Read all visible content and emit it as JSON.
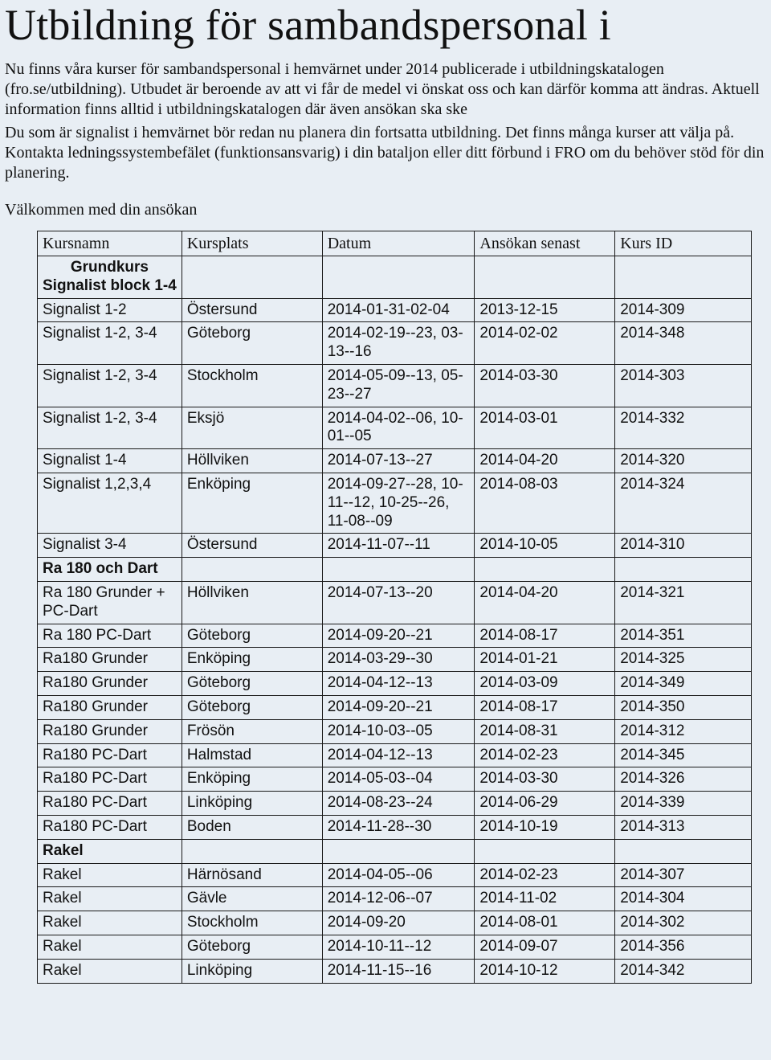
{
  "title": "Utbildning för sambandspersonal i",
  "intro_p1": "Nu finns våra kurser för sambandspersonal i hemvärnet under 2014 publicerade i utbildningskatalogen (fro.se/utbildning). Utbudet är beroende av att vi får de medel vi önskat oss och kan därför komma att ändras. Aktuell information finns alltid i utbildningskatalogen där även ansökan ska ske",
  "intro_p2": "Du som är signalist i hemvärnet bör redan nu planera din fortsatta utbildning. Det finns många kurser att välja på. Kontakta ledningssystembefälet (funktionsansvarig) i din bataljon eller ditt förbund i FRO om du behöver stöd för din planering.",
  "welcome": "Välkommen med din ansökan",
  "columns": [
    "Kursnamn",
    "Kursplats",
    "Datum",
    "Ansökan senast",
    "Kurs ID"
  ],
  "groups": [
    {
      "header": "Grundkurs",
      "subheader": "Signalist block 1-4",
      "centeredHeader": true,
      "rows": [
        [
          "Signalist 1-2",
          "Östersund",
          "2014-01-31-02-04",
          "2013-12-15",
          "2014-309"
        ],
        [
          "Signalist 1-2, 3-4",
          "Göteborg",
          "2014-02-19--23, 03-13--16",
          "2014-02-02",
          "2014-348"
        ],
        [
          "Signalist 1-2, 3-4",
          "Stockholm",
          "2014-05-09--13, 05-23--27",
          "2014-03-30",
          "2014-303"
        ],
        [
          "Signalist 1-2, 3-4",
          "Eksjö",
          "2014-04-02--06, 10-01--05",
          "2014-03-01",
          "2014-332"
        ],
        [
          "Signalist 1-4",
          "Höllviken",
          "2014-07-13--27",
          "2014-04-20",
          "2014-320"
        ],
        [
          "Signalist 1,2,3,4",
          "Enköping",
          "2014-09-27--28, 10-11--12, 10-25--26, 11-08--09",
          "2014-08-03",
          "2014-324"
        ],
        [
          "Signalist 3-4",
          "Östersund",
          "2014-11-07--11",
          "2014-10-05",
          "2014-310"
        ]
      ]
    },
    {
      "header": "Ra 180 och Dart",
      "subheader": "",
      "centeredHeader": false,
      "rows": [
        [
          "Ra 180 Grunder + PC-Dart",
          "Höllviken",
          "2014-07-13--20",
          "2014-04-20",
          "2014-321"
        ],
        [
          "Ra 180 PC-Dart",
          "Göteborg",
          "2014-09-20--21",
          "2014-08-17",
          "2014-351"
        ],
        [
          "Ra180 Grunder",
          "Enköping",
          "2014-03-29--30",
          "2014-01-21",
          "2014-325"
        ],
        [
          "Ra180 Grunder",
          "Göteborg",
          "2014-04-12--13",
          "2014-03-09",
          "2014-349"
        ],
        [
          "Ra180 Grunder",
          "Göteborg",
          "2014-09-20--21",
          "2014-08-17",
          "2014-350"
        ],
        [
          "Ra180 Grunder",
          "Frösön",
          "2014-10-03--05",
          "2014-08-31",
          "2014-312"
        ],
        [
          "Ra180 PC-Dart",
          "Halmstad",
          "2014-04-12--13",
          "2014-02-23",
          "2014-345"
        ],
        [
          "Ra180 PC-Dart",
          "Enköping",
          "2014-05-03--04",
          "2014-03-30",
          "2014-326"
        ],
        [
          "Ra180 PC-Dart",
          "Linköping",
          "2014-08-23--24",
          "2014-06-29",
          "2014-339"
        ],
        [
          "Ra180 PC-Dart",
          "Boden",
          "2014-11-28--30",
          "2014-10-19",
          "2014-313"
        ]
      ]
    },
    {
      "header": "Rakel",
      "subheader": "",
      "centeredHeader": true,
      "rows": [
        [
          "Rakel",
          "Härnösand",
          "2014-04-05--06",
          "2014-02-23",
          "2014-307"
        ],
        [
          "Rakel",
          "Gävle",
          "2014-12-06--07",
          "2014-11-02",
          "2014-304"
        ],
        [
          "Rakel",
          "Stockholm",
          "2014-09-20",
          "2014-08-01",
          "2014-302"
        ],
        [
          "Rakel",
          "Göteborg",
          "2014-10-11--12",
          "2014-09-07",
          "2014-356"
        ],
        [
          "Rakel",
          "Linköping",
          "2014-11-15--16",
          "2014-10-12",
          "2014-342"
        ]
      ]
    }
  ]
}
